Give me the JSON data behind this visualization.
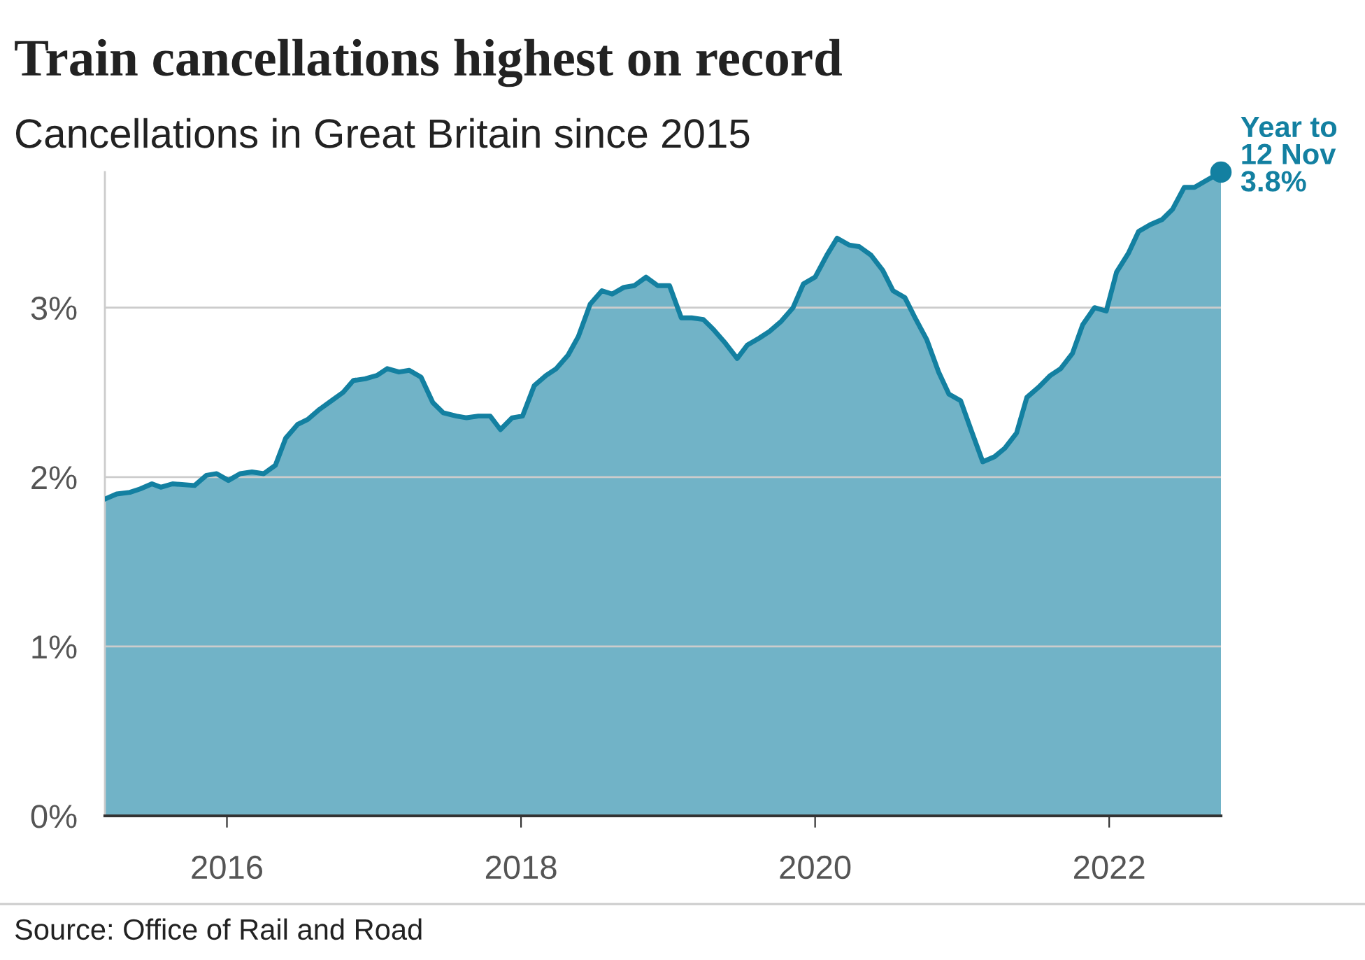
{
  "chart_data": {
    "type": "area",
    "title": "Train cancellations highest on record",
    "subtitle": "Cancellations in Great Britain since 2015",
    "x": [
      2015.17,
      2015.25,
      2015.34,
      2015.41,
      2015.49,
      2015.55,
      2015.63,
      2015.78,
      2015.86,
      2015.93,
      2016.01,
      2016.09,
      2016.17,
      2016.25,
      2016.33,
      2016.4,
      2016.48,
      2016.55,
      2016.63,
      2016.71,
      2016.79,
      2016.86,
      2016.94,
      2017.02,
      2017.09,
      2017.17,
      2017.24,
      2017.32,
      2017.4,
      2017.47,
      2017.56,
      2017.63,
      2017.71,
      2017.79,
      2017.86,
      2017.94,
      2018.01,
      2018.09,
      2018.17,
      2018.24,
      2018.32,
      2018.39,
      2018.47,
      2018.55,
      2018.62,
      2018.7,
      2018.77,
      2018.85,
      2018.93,
      2019.01,
      2019.09,
      2019.16,
      2019.24,
      2019.31,
      2019.39,
      2019.47,
      2019.54,
      2019.62,
      2019.69,
      2019.77,
      2019.85,
      2019.92,
      2020.0,
      2020.08,
      2020.15,
      2020.23,
      2020.3,
      2020.38,
      2020.46,
      2020.53,
      2020.61,
      2020.68,
      2020.76,
      2020.84,
      2020.91,
      2020.99,
      2021.06,
      2021.14,
      2021.22,
      2021.29,
      2021.37,
      2021.44,
      2021.52,
      2021.6,
      2021.67,
      2021.75,
      2021.82,
      2021.9,
      2021.98,
      2022.05,
      2022.13,
      2022.2,
      2022.28,
      2022.36,
      2022.43,
      2022.51,
      2022.58,
      2022.66,
      2022.76
    ],
    "series": [
      {
        "color": "#1380a1",
        "values": [
          1.87,
          1.9,
          1.91,
          1.93,
          1.96,
          1.94,
          1.96,
          1.95,
          2.01,
          2.02,
          1.98,
          2.02,
          2.03,
          2.02,
          2.07,
          2.23,
          2.31,
          2.34,
          2.4,
          2.45,
          2.5,
          2.57,
          2.58,
          2.6,
          2.64,
          2.62,
          2.63,
          2.59,
          2.44,
          2.38,
          2.36,
          2.35,
          2.36,
          2.36,
          2.28,
          2.35,
          2.36,
          2.54,
          2.6,
          2.64,
          2.72,
          2.83,
          3.02,
          3.1,
          3.08,
          3.12,
          3.13,
          3.18,
          3.13,
          3.13,
          2.94,
          2.94,
          2.93,
          2.87,
          2.79,
          2.7,
          2.78,
          2.82,
          2.86,
          2.92,
          3.0,
          3.14,
          3.18,
          3.31,
          3.41,
          3.37,
          3.36,
          3.31,
          3.22,
          3.1,
          3.06,
          2.94,
          2.81,
          2.62,
          2.49,
          2.45,
          2.28,
          2.09,
          2.12,
          2.17,
          2.26,
          2.47,
          2.53,
          2.6,
          2.64,
          2.73,
          2.9,
          3.0,
          2.98,
          3.21,
          3.32,
          3.45,
          3.49,
          3.52,
          3.58,
          3.71,
          3.71,
          3.75,
          3.8
        ]
      }
    ],
    "xlim": [
      2015.17,
      2022.76
    ],
    "ylim": [
      0,
      3.8
    ],
    "xticks": [
      2016,
      2018,
      2020,
      2022
    ],
    "yticks": [
      {
        "value": 0,
        "label": "0%"
      },
      {
        "value": 1,
        "label": "1%"
      },
      {
        "value": 2,
        "label": "2%"
      },
      {
        "value": 3,
        "label": "3%"
      }
    ],
    "grid": "y",
    "annotations": [
      {
        "text": "Year to\n12 Nov\n3.8%",
        "x": 2022.76,
        "y": 3.8
      },
      "Source: Office of Rail and Road"
    ]
  }
}
